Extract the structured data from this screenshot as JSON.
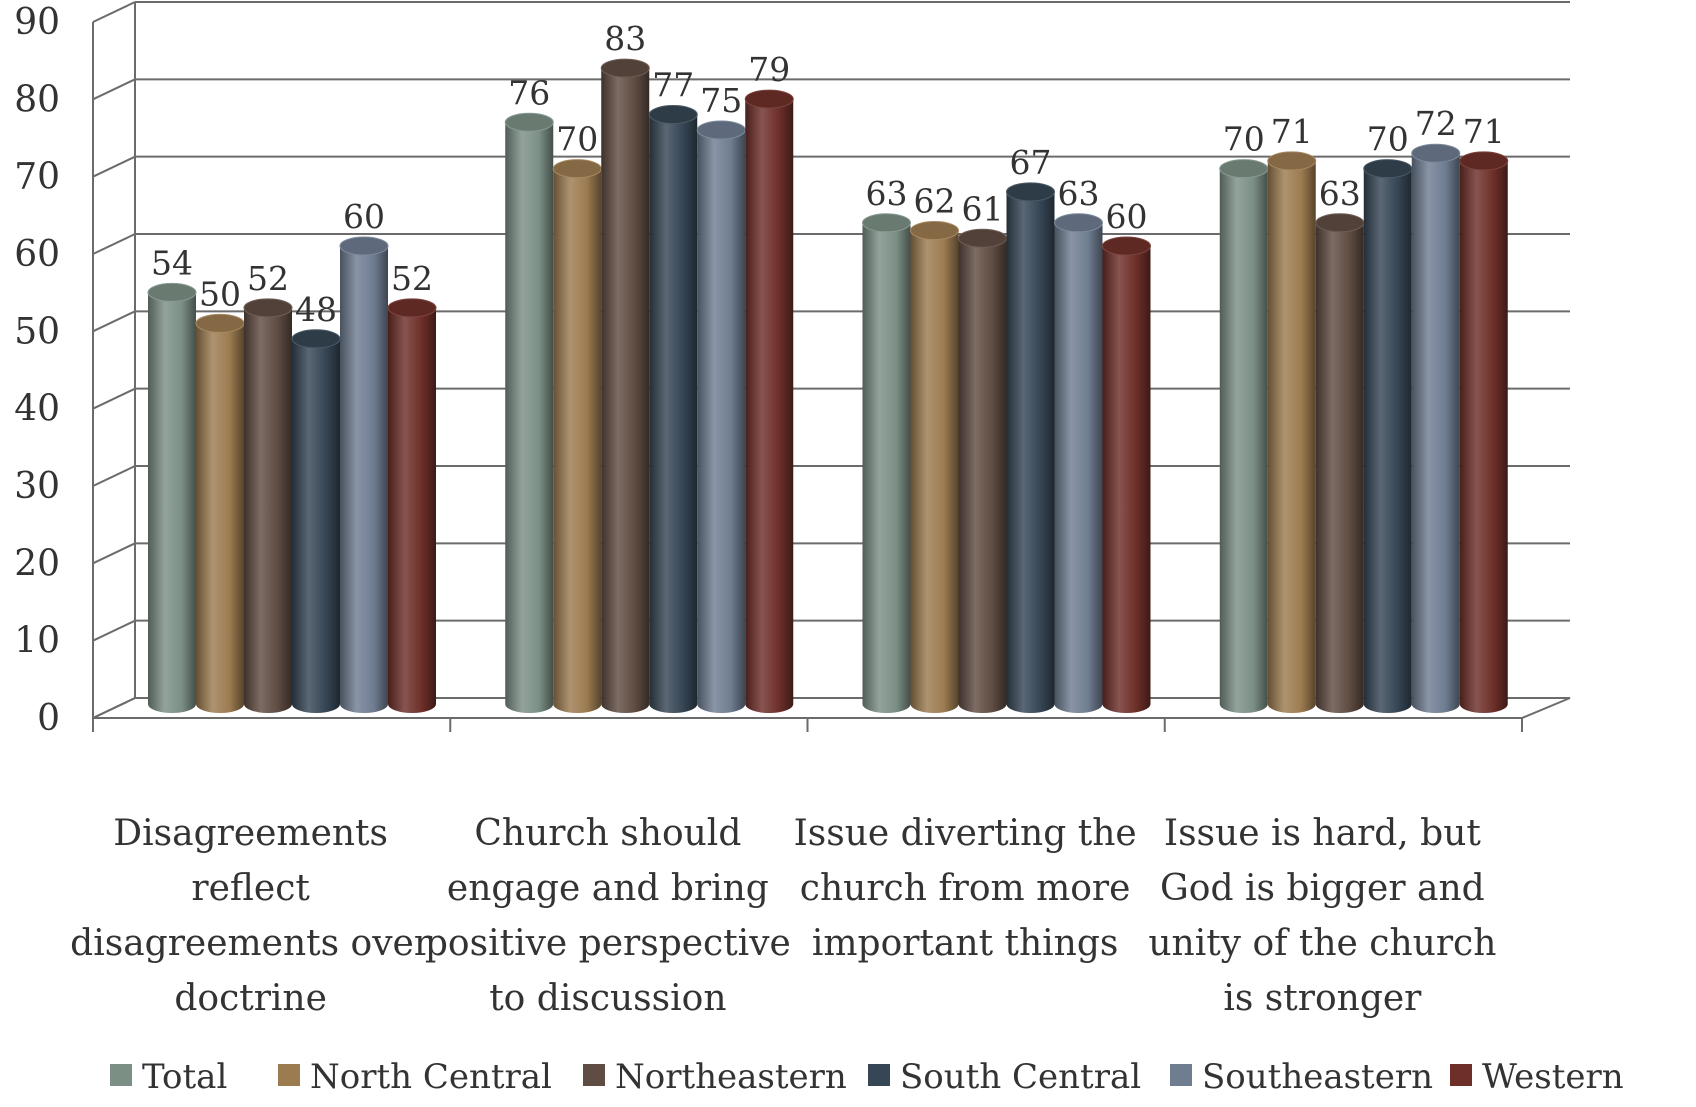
{
  "chart_data": {
    "type": "bar",
    "categories": [
      [
        "Disagreements",
        "reflect",
        "disagreements over",
        "doctrine"
      ],
      [
        "Church should",
        "engage and bring",
        "positive perspective",
        "to discussion"
      ],
      [
        "Issue diverting the",
        "church from more",
        "important things"
      ],
      [
        "Issue is hard, but",
        "God is bigger and",
        "unity of the church",
        "is stronger"
      ]
    ],
    "series": [
      {
        "name": "Total",
        "color": "#7b8f85",
        "values": [
          54,
          76,
          63,
          70
        ]
      },
      {
        "name": "North Central",
        "color": "#9c7b50",
        "values": [
          50,
          70,
          62,
          71
        ]
      },
      {
        "name": "Northeastern",
        "color": "#5f4c42",
        "values": [
          52,
          83,
          61,
          63
        ]
      },
      {
        "name": "South Central",
        "color": "#364655",
        "values": [
          48,
          77,
          67,
          70
        ]
      },
      {
        "name": "Southeastern",
        "color": "#6f7d91",
        "values": [
          60,
          75,
          63,
          72
        ]
      },
      {
        "name": "Western",
        "color": "#6e2f29",
        "values": [
          52,
          79,
          60,
          71
        ]
      }
    ],
    "ylim": [
      0,
      90
    ],
    "yticks": [
      0,
      10,
      20,
      30,
      40,
      50,
      60,
      70,
      80,
      90
    ],
    "grid": true,
    "legend_position": "bottom",
    "title": "",
    "xlabel": "",
    "ylabel": ""
  }
}
